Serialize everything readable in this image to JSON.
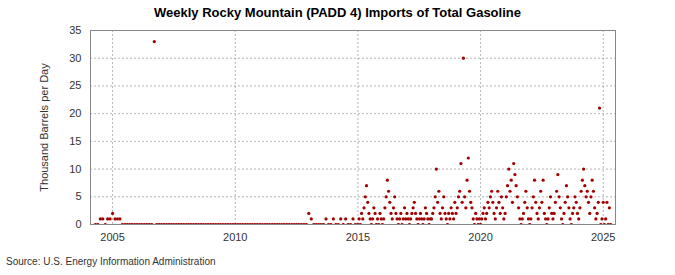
{
  "chart_data": {
    "type": "scatter",
    "title": "Weekly Rocky Mountain (PADD 4) Imports of Total Gasoline",
    "y_label": "Thousand Barrels per Day",
    "source": "Source: U.S. Energy Information Administration",
    "color": "#a00000",
    "marker": "circle",
    "grid": true,
    "xlim": [
      2004.1,
      2025.5
    ],
    "xticks": [
      2005,
      2010,
      2015,
      2020,
      2025
    ],
    "ylim": [
      0,
      35
    ],
    "yticks": [
      0,
      5,
      10,
      15,
      20,
      25,
      30,
      35
    ],
    "x": [
      2004.3,
      2004.4,
      2004.5,
      2004.6,
      2004.7,
      2004.8,
      2004.9,
      2005.0,
      2005.1,
      2005.2,
      2005.3,
      2005.4,
      2005.5,
      2005.6,
      2005.7,
      2005.8,
      2005.9,
      2006.0,
      2006.1,
      2006.2,
      2006.3,
      2006.4,
      2006.5,
      2006.6,
      2006.7,
      2006.8,
      2006.9,
      2007.0,
      2007.1,
      2007.2,
      2007.3,
      2007.4,
      2007.5,
      2007.6,
      2007.7,
      2007.8,
      2007.9,
      2008.0,
      2008.1,
      2008.2,
      2008.3,
      2008.4,
      2008.5,
      2008.6,
      2008.7,
      2008.8,
      2008.9,
      2009.0,
      2009.1,
      2009.2,
      2009.3,
      2009.4,
      2009.5,
      2009.6,
      2009.7,
      2009.8,
      2009.9,
      2010.0,
      2010.1,
      2010.2,
      2010.3,
      2010.4,
      2010.5,
      2010.6,
      2010.7,
      2010.8,
      2010.9,
      2011.0,
      2011.1,
      2011.2,
      2011.3,
      2011.4,
      2011.5,
      2011.6,
      2011.7,
      2011.8,
      2011.9,
      2012.0,
      2012.1,
      2012.2,
      2012.3,
      2012.4,
      2012.5,
      2012.6,
      2012.7,
      2012.8,
      2012.9,
      2013.0,
      2013.1,
      2013.2,
      2013.3,
      2013.4,
      2013.5,
      2013.6,
      2013.7,
      2013.8,
      2013.9,
      2014.0,
      2014.1,
      2014.2,
      2014.3,
      2014.4,
      2014.5,
      2014.6,
      2014.7,
      2014.8,
      2014.9,
      2015.0,
      2015.05,
      2015.1,
      2015.15,
      2015.2,
      2015.25,
      2015.3,
      2015.35,
      2015.4,
      2015.45,
      2015.5,
      2015.55,
      2015.6,
      2015.65,
      2015.7,
      2015.75,
      2015.8,
      2015.85,
      2015.9,
      2015.95,
      2016.0,
      2016.05,
      2016.1,
      2016.15,
      2016.2,
      2016.25,
      2016.3,
      2016.35,
      2016.4,
      2016.45,
      2016.5,
      2016.55,
      2016.6,
      2016.65,
      2016.7,
      2016.75,
      2016.8,
      2016.85,
      2016.9,
      2016.95,
      2017.0,
      2017.05,
      2017.1,
      2017.15,
      2017.2,
      2017.25,
      2017.3,
      2017.35,
      2017.4,
      2017.45,
      2017.5,
      2017.55,
      2017.6,
      2017.65,
      2017.7,
      2017.75,
      2017.8,
      2017.85,
      2017.9,
      2017.95,
      2018.0,
      2018.05,
      2018.1,
      2018.15,
      2018.2,
      2018.25,
      2018.3,
      2018.35,
      2018.4,
      2018.45,
      2018.5,
      2018.55,
      2018.6,
      2018.65,
      2018.7,
      2018.75,
      2018.8,
      2018.85,
      2018.9,
      2018.95,
      2019.0,
      2019.05,
      2019.1,
      2019.15,
      2019.2,
      2019.25,
      2019.3,
      2019.35,
      2019.4,
      2019.45,
      2019.5,
      2019.55,
      2019.6,
      2019.65,
      2019.7,
      2019.75,
      2019.8,
      2019.85,
      2019.9,
      2019.95,
      2020.0,
      2020.05,
      2020.1,
      2020.15,
      2020.2,
      2020.25,
      2020.3,
      2020.35,
      2020.4,
      2020.45,
      2020.5,
      2020.55,
      2020.6,
      2020.65,
      2020.7,
      2020.75,
      2020.8,
      2020.85,
      2020.9,
      2020.95,
      2021.0,
      2021.05,
      2021.1,
      2021.15,
      2021.2,
      2021.25,
      2021.3,
      2021.35,
      2021.4,
      2021.45,
      2021.5,
      2021.55,
      2021.6,
      2021.65,
      2021.7,
      2021.75,
      2021.8,
      2021.85,
      2021.9,
      2021.95,
      2022.0,
      2022.05,
      2022.1,
      2022.15,
      2022.2,
      2022.25,
      2022.3,
      2022.35,
      2022.4,
      2022.45,
      2022.5,
      2022.55,
      2022.6,
      2022.65,
      2022.7,
      2022.75,
      2022.8,
      2022.85,
      2022.9,
      2022.95,
      2023.0,
      2023.05,
      2023.1,
      2023.15,
      2023.2,
      2023.25,
      2023.3,
      2023.35,
      2023.4,
      2023.45,
      2023.5,
      2023.55,
      2023.6,
      2023.65,
      2023.7,
      2023.75,
      2023.8,
      2023.85,
      2023.9,
      2023.95,
      2024.0,
      2024.05,
      2024.1,
      2024.15,
      2024.2,
      2024.25,
      2024.3,
      2024.35,
      2024.4,
      2024.45,
      2024.5,
      2024.55,
      2024.6,
      2024.65,
      2024.7,
      2024.75,
      2024.8,
      2024.85,
      2024.9,
      2024.95,
      2025.0,
      2025.05,
      2025.1,
      2025.15,
      2025.2,
      2025.25,
      2025.3
    ],
    "values": [
      0,
      0,
      1,
      1,
      0,
      1,
      1,
      2,
      1,
      1,
      1,
      0,
      0,
      0,
      0,
      0,
      0,
      0,
      0,
      0,
      0,
      0,
      0,
      0,
      33,
      0,
      0,
      0,
      0,
      0,
      0,
      0,
      0,
      0,
      0,
      0,
      0,
      0,
      0,
      0,
      0,
      0,
      0,
      0,
      0,
      0,
      0,
      0,
      0,
      0,
      0,
      0,
      0,
      0,
      0,
      0,
      0,
      0,
      0,
      0,
      0,
      0,
      0,
      0,
      0,
      0,
      0,
      0,
      0,
      0,
      0,
      0,
      0,
      0,
      0,
      0,
      0,
      0,
      0,
      0,
      0,
      0,
      0,
      0,
      0,
      0,
      0,
      2,
      1,
      0,
      0,
      0,
      0,
      0,
      1,
      0,
      0,
      1,
      0,
      0,
      1,
      0,
      1,
      0,
      0,
      1,
      0,
      0,
      1,
      0,
      2,
      1,
      3,
      5,
      7,
      4,
      2,
      1,
      0,
      1,
      3,
      2,
      0,
      1,
      0,
      2,
      1,
      0,
      1,
      3,
      5,
      8,
      6,
      4,
      2,
      1,
      3,
      5,
      2,
      1,
      0,
      1,
      2,
      0,
      1,
      3,
      1,
      2,
      1,
      0,
      1,
      2,
      3,
      4,
      2,
      1,
      0,
      1,
      2,
      1,
      0,
      1,
      3,
      2,
      1,
      0,
      1,
      1,
      2,
      3,
      5,
      10,
      4,
      6,
      2,
      1,
      3,
      5,
      2,
      1,
      0,
      2,
      1,
      3,
      2,
      1,
      4,
      2,
      3,
      5,
      6,
      11,
      4,
      30,
      5,
      3,
      8,
      12,
      6,
      4,
      3,
      1,
      0,
      2,
      1,
      0,
      1,
      0,
      1,
      2,
      3,
      1,
      2,
      4,
      3,
      5,
      6,
      4,
      2,
      1,
      3,
      6,
      4,
      2,
      5,
      3,
      1,
      2,
      5,
      7,
      10,
      6,
      8,
      4,
      11,
      9,
      7,
      5,
      3,
      1,
      0,
      1,
      2,
      4,
      6,
      3,
      1,
      0,
      1,
      3,
      5,
      8,
      4,
      2,
      1,
      3,
      6,
      4,
      8,
      2,
      1,
      0,
      1,
      3,
      5,
      2,
      1,
      2,
      4,
      6,
      9,
      5,
      3,
      1,
      0,
      2,
      4,
      7,
      5,
      3,
      1,
      0,
      2,
      3,
      5,
      4,
      2,
      1,
      3,
      6,
      8,
      10,
      7,
      5,
      6,
      4,
      2,
      5,
      8,
      6,
      3,
      1,
      2,
      4,
      21,
      0,
      1,
      4,
      0,
      1,
      4,
      0,
      3,
      0
    ]
  }
}
